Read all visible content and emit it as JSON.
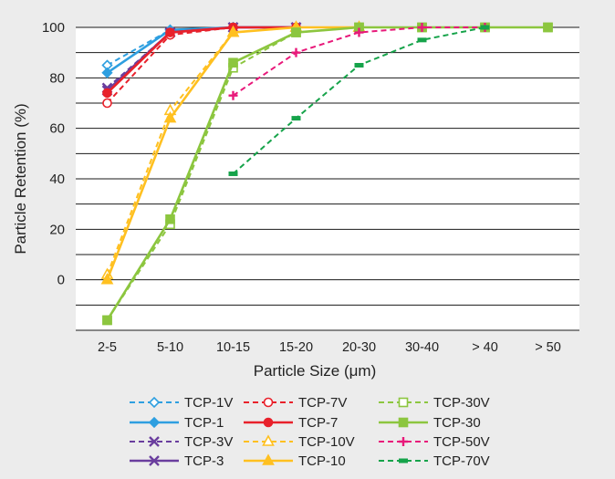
{
  "chart_data": {
    "type": "line",
    "title": "",
    "xlabel": "Particle Size (μm)",
    "ylabel": "Particle Retention (%)",
    "categories": [
      "2-5",
      "5-10",
      "10-15",
      "15-20",
      "20-30",
      "30-40",
      "> 40",
      "> 50"
    ],
    "y_ticks": [
      "100",
      "80",
      "60",
      "40",
      "20",
      "0"
    ],
    "y_tick_values": [
      100,
      80,
      60,
      40,
      20,
      0
    ],
    "ylim": [
      -20,
      100
    ],
    "grid": "horizontal",
    "legend_position": "bottom",
    "series": [
      {
        "name": "TCP-1V",
        "color": "#2e9fe0",
        "dash": true,
        "marker": "diamond-open",
        "values": [
          85,
          99,
          100,
          100,
          null,
          null,
          null,
          null
        ]
      },
      {
        "name": "TCP-1",
        "color": "#2e9fe0",
        "dash": false,
        "marker": "diamond",
        "values": [
          82,
          99,
          100,
          100,
          null,
          null,
          null,
          null
        ]
      },
      {
        "name": "TCP-3V",
        "color": "#6a3e9e",
        "dash": true,
        "marker": "x",
        "values": [
          76,
          98,
          100,
          100,
          null,
          null,
          null,
          null
        ]
      },
      {
        "name": "TCP-3",
        "color": "#6a3e9e",
        "dash": false,
        "marker": "x",
        "values": [
          75,
          98,
          100,
          100,
          null,
          null,
          null,
          null
        ]
      },
      {
        "name": "TCP-7V",
        "color": "#e8212b",
        "dash": true,
        "marker": "circle-open",
        "values": [
          70,
          97,
          100,
          100,
          null,
          null,
          null,
          null
        ]
      },
      {
        "name": "TCP-7",
        "color": "#e8212b",
        "dash": false,
        "marker": "circle",
        "values": [
          74,
          98,
          100,
          100,
          null,
          null,
          null,
          null
        ]
      },
      {
        "name": "TCP-10V",
        "color": "#ffc020",
        "dash": true,
        "marker": "triangle-open",
        "values": [
          2,
          67,
          98,
          100,
          100,
          null,
          null,
          null
        ]
      },
      {
        "name": "TCP-10",
        "color": "#ffc020",
        "dash": false,
        "marker": "triangle",
        "values": [
          0,
          64,
          98,
          100,
          100,
          null,
          null,
          null
        ]
      },
      {
        "name": "TCP-30V",
        "color": "#8cc63f",
        "dash": true,
        "marker": "square-open",
        "values": [
          -16,
          22,
          84,
          98,
          100,
          100,
          100,
          100
        ]
      },
      {
        "name": "TCP-30",
        "color": "#8cc63f",
        "dash": false,
        "marker": "square",
        "values": [
          -16,
          24,
          86,
          98,
          100,
          100,
          100,
          100
        ]
      },
      {
        "name": "TCP-50V",
        "color": "#e8197a",
        "dash": true,
        "marker": "plus",
        "values": [
          null,
          null,
          73,
          90,
          98,
          100,
          100,
          null
        ]
      },
      {
        "name": "TCP-70V",
        "color": "#16a34a",
        "dash": true,
        "marker": "dash",
        "values": [
          null,
          null,
          42,
          64,
          85,
          95,
          100,
          null
        ]
      }
    ]
  }
}
